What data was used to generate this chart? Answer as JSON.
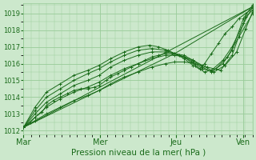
{
  "title": "",
  "xlabel": "Pression niveau de la mer( hPa )",
  "ylabel": "",
  "bg_color": "#cce8cc",
  "grid_color": "#99cc99",
  "line_color": "#1a6b1a",
  "marker_color": "#1a6b1a",
  "ylim": [
    1011.8,
    1019.6
  ],
  "yticks": [
    1012,
    1013,
    1014,
    1015,
    1016,
    1017,
    1018,
    1019
  ],
  "day_labels": [
    "Mar",
    "Mer",
    "Jeu",
    "Ven"
  ],
  "day_positions": [
    0.0,
    33.3,
    66.6,
    96.0
  ],
  "vline_positions": [
    33.3,
    66.6,
    96.0
  ],
  "xlim": [
    0,
    100
  ],
  "series": [
    {
      "x": [
        0,
        3,
        5,
        8,
        10,
        13,
        16,
        19,
        22,
        25,
        28,
        31,
        33,
        36,
        38,
        41,
        44,
        47,
        50,
        53,
        56,
        59,
        62,
        65,
        68,
        70,
        73,
        75,
        77,
        79,
        82,
        85,
        88,
        91,
        94,
        97,
        100
      ],
      "y": [
        1012.2,
        1012.5,
        1012.8,
        1013.1,
        1013.5,
        1013.8,
        1014.0,
        1014.2,
        1014.4,
        1014.5,
        1014.5,
        1014.6,
        1014.7,
        1015.0,
        1015.2,
        1015.4,
        1015.6,
        1015.8,
        1016.0,
        1016.2,
        1016.4,
        1016.5,
        1016.6,
        1016.6,
        1016.5,
        1016.4,
        1016.1,
        1015.9,
        1015.7,
        1016.0,
        1016.6,
        1017.2,
        1017.8,
        1018.2,
        1018.7,
        1019.0,
        1019.3
      ]
    },
    {
      "x": [
        0,
        5,
        10,
        16,
        22,
        28,
        33,
        38,
        44,
        50,
        56,
        62,
        66,
        70,
        74,
        78,
        82,
        87,
        91,
        96,
        100
      ],
      "y": [
        1012.2,
        1012.8,
        1013.4,
        1013.9,
        1014.3,
        1014.6,
        1014.9,
        1015.3,
        1015.7,
        1016.0,
        1016.3,
        1016.5,
        1016.5,
        1016.4,
        1016.2,
        1015.9,
        1015.6,
        1016.2,
        1017.0,
        1018.4,
        1019.4
      ]
    },
    {
      "x": [
        0,
        5,
        10,
        16,
        22,
        28,
        33,
        38,
        44,
        50,
        56,
        62,
        66,
        70,
        74,
        78,
        82,
        87,
        91,
        96,
        100
      ],
      "y": [
        1012.2,
        1013.0,
        1013.7,
        1014.2,
        1014.7,
        1015.0,
        1015.3,
        1015.8,
        1016.2,
        1016.5,
        1016.7,
        1016.7,
        1016.6,
        1016.5,
        1016.2,
        1015.8,
        1015.5,
        1016.0,
        1016.8,
        1018.7,
        1019.5
      ]
    },
    {
      "x": [
        0,
        5,
        10,
        16,
        22,
        28,
        33,
        38,
        44,
        50,
        56,
        62,
        66,
        70,
        75,
        80,
        86,
        91,
        97,
        100
      ],
      "y": [
        1012.2,
        1012.6,
        1013.0,
        1013.4,
        1013.8,
        1014.1,
        1014.4,
        1014.8,
        1015.2,
        1015.5,
        1015.8,
        1016.0,
        1016.1,
        1016.1,
        1016.0,
        1015.8,
        1015.6,
        1016.5,
        1018.8,
        1019.2
      ]
    },
    {
      "x": [
        0,
        5,
        10,
        16,
        22,
        28,
        33,
        38,
        44,
        50,
        56,
        62,
        66,
        70,
        74,
        78,
        83,
        88,
        93,
        97,
        100
      ],
      "y": [
        1012.2,
        1013.2,
        1014.0,
        1014.5,
        1015.0,
        1015.4,
        1015.7,
        1016.1,
        1016.5,
        1016.8,
        1016.9,
        1016.8,
        1016.6,
        1016.4,
        1016.1,
        1015.7,
        1015.5,
        1015.9,
        1016.7,
        1018.1,
        1019.1
      ]
    },
    {
      "x": [
        0,
        5,
        10,
        16,
        22,
        28,
        33,
        38,
        44,
        50,
        55,
        59,
        63,
        66,
        70,
        74,
        79,
        84,
        89,
        94,
        100
      ],
      "y": [
        1012.2,
        1013.4,
        1014.3,
        1014.8,
        1015.3,
        1015.6,
        1015.9,
        1016.3,
        1016.7,
        1017.0,
        1017.1,
        1017.0,
        1016.8,
        1016.6,
        1016.3,
        1015.9,
        1015.5,
        1015.7,
        1016.4,
        1017.6,
        1019.0
      ]
    },
    {
      "x": [
        0,
        100
      ],
      "y": [
        1012.2,
        1019.4
      ],
      "is_straight": true
    },
    {
      "x": [
        0,
        66,
        100
      ],
      "y": [
        1012.2,
        1016.6,
        1019.4
      ],
      "is_straight": true
    }
  ]
}
